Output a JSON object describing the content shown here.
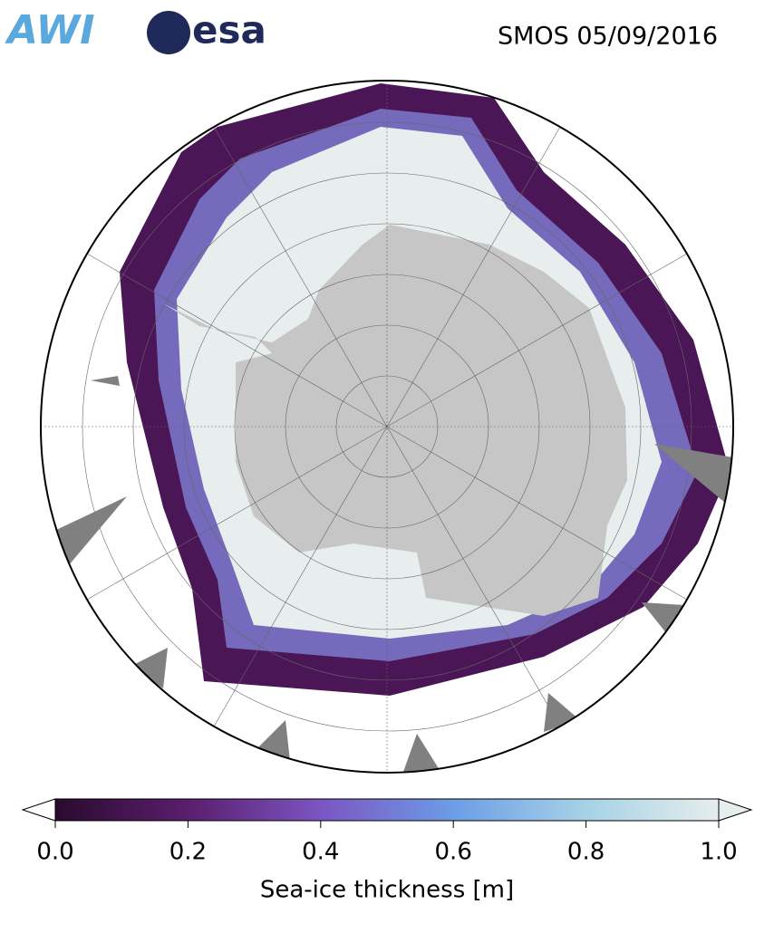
{
  "header": {
    "logos": [
      "AWI",
      "esa"
    ],
    "title": "SMOS 05/09/2016"
  },
  "colorbar": {
    "label": "Sea-ice thickness [m]",
    "lim": [
      0,
      1
    ],
    "colors": [
      "#2a0a2f",
      "#5a1e6c",
      "#7b55c2",
      "#6c9de6",
      "#a6d2e6",
      "#e6eded"
    ],
    "ticks": [
      {
        "value": 0,
        "label": "0.0"
      },
      {
        "value": 0.2,
        "label": "0.2"
      },
      {
        "value": 0.4,
        "label": "0.4"
      },
      {
        "value": 0.6,
        "label": "0.6"
      },
      {
        "value": 0.8,
        "label": "0.8"
      },
      {
        "value": 1,
        "label": "1.0"
      }
    ]
  }
}
